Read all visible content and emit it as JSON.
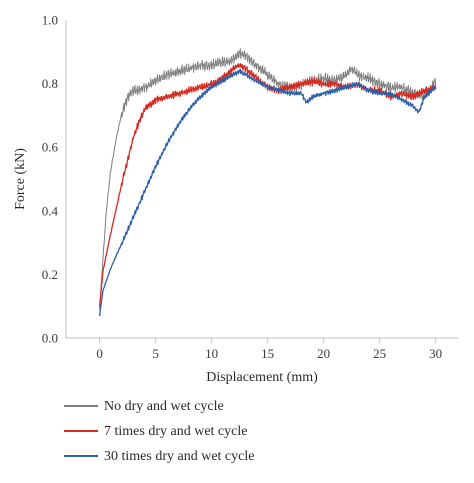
{
  "chart_data": {
    "type": "line",
    "xlabel": "Displacement (mm)",
    "ylabel": "Force (kN)",
    "xlim": [
      -3,
      32
    ],
    "ylim": [
      0,
      1.0
    ],
    "x_ticks": [
      0,
      5,
      10,
      15,
      20,
      25,
      30
    ],
    "x_tick_labels": [
      "0",
      "5",
      "10",
      "15",
      "20",
      "25",
      "30"
    ],
    "y_ticks": [
      0,
      0.2,
      0.4,
      0.6,
      0.8,
      1.0
    ],
    "y_tick_labels": [
      "0.0",
      "0.2",
      "0.4",
      "0.6",
      "0.8",
      "1.0"
    ],
    "grid": false,
    "legend_position": "bottom",
    "series": [
      {
        "name": "No dry and wet cycle",
        "color": "#7f7f7f",
        "x": [
          0,
          0.3,
          0.6,
          1.0,
          1.5,
          2.0,
          2.5,
          3.0,
          4.0,
          5.0,
          6.0,
          7.0,
          8.0,
          9.0,
          10.0,
          11.0,
          12.0,
          12.5,
          13.0,
          14.0,
          15.0,
          16.0,
          17.0,
          18.0,
          19.0,
          20.0,
          21.0,
          22.0,
          22.5,
          23.0,
          24.0,
          25.0,
          26.0,
          27.0,
          28.0,
          29.0,
          30.0
        ],
        "y": [
          0.09,
          0.25,
          0.4,
          0.53,
          0.63,
          0.71,
          0.76,
          0.78,
          0.79,
          0.81,
          0.83,
          0.84,
          0.85,
          0.86,
          0.86,
          0.87,
          0.88,
          0.9,
          0.89,
          0.86,
          0.83,
          0.8,
          0.79,
          0.8,
          0.81,
          0.82,
          0.81,
          0.83,
          0.85,
          0.83,
          0.82,
          0.8,
          0.79,
          0.79,
          0.77,
          0.76,
          0.81
        ],
        "jitter": 0.022
      },
      {
        "name": "7 times dry and wet cycle",
        "color": "#d42a1f",
        "x": [
          0,
          0.3,
          0.7,
          1.0,
          1.5,
          2.0,
          2.5,
          3.0,
          3.5,
          4.0,
          5.0,
          6.0,
          7.0,
          8.0,
          9.0,
          10.0,
          11.0,
          12.0,
          12.5,
          13.0,
          14.0,
          15.0,
          16.0,
          17.0,
          18.0,
          19.0,
          20.0,
          21.0,
          22.0,
          23.0,
          24.0,
          25.0,
          26.0,
          27.0,
          28.0,
          29.0,
          30.0
        ],
        "y": [
          0.1,
          0.21,
          0.28,
          0.33,
          0.41,
          0.49,
          0.56,
          0.63,
          0.68,
          0.72,
          0.75,
          0.76,
          0.77,
          0.78,
          0.79,
          0.8,
          0.82,
          0.85,
          0.86,
          0.85,
          0.82,
          0.79,
          0.78,
          0.79,
          0.8,
          0.81,
          0.8,
          0.8,
          0.79,
          0.8,
          0.78,
          0.78,
          0.76,
          0.77,
          0.76,
          0.78,
          0.79
        ],
        "jitter": 0.014
      },
      {
        "name": "30 times dry and wet cycle",
        "color": "#2d5ea8",
        "x": [
          0,
          0.3,
          0.7,
          1.0,
          1.5,
          2.0,
          3.0,
          4.0,
          5.0,
          6.0,
          7.0,
          8.0,
          9.0,
          10.0,
          11.0,
          12.0,
          12.5,
          13.0,
          14.0,
          15.0,
          16.0,
          17.0,
          18.0,
          18.5,
          19.0,
          20.0,
          21.0,
          22.0,
          23.0,
          24.0,
          25.0,
          26.0,
          27.0,
          28.0,
          28.5,
          29.0,
          30.0
        ],
        "y": [
          0.07,
          0.15,
          0.19,
          0.22,
          0.26,
          0.3,
          0.38,
          0.46,
          0.54,
          0.61,
          0.67,
          0.72,
          0.76,
          0.79,
          0.81,
          0.83,
          0.84,
          0.83,
          0.81,
          0.79,
          0.78,
          0.77,
          0.77,
          0.74,
          0.76,
          0.77,
          0.78,
          0.79,
          0.8,
          0.78,
          0.77,
          0.77,
          0.75,
          0.73,
          0.71,
          0.76,
          0.79
        ],
        "jitter": 0.01
      }
    ]
  }
}
